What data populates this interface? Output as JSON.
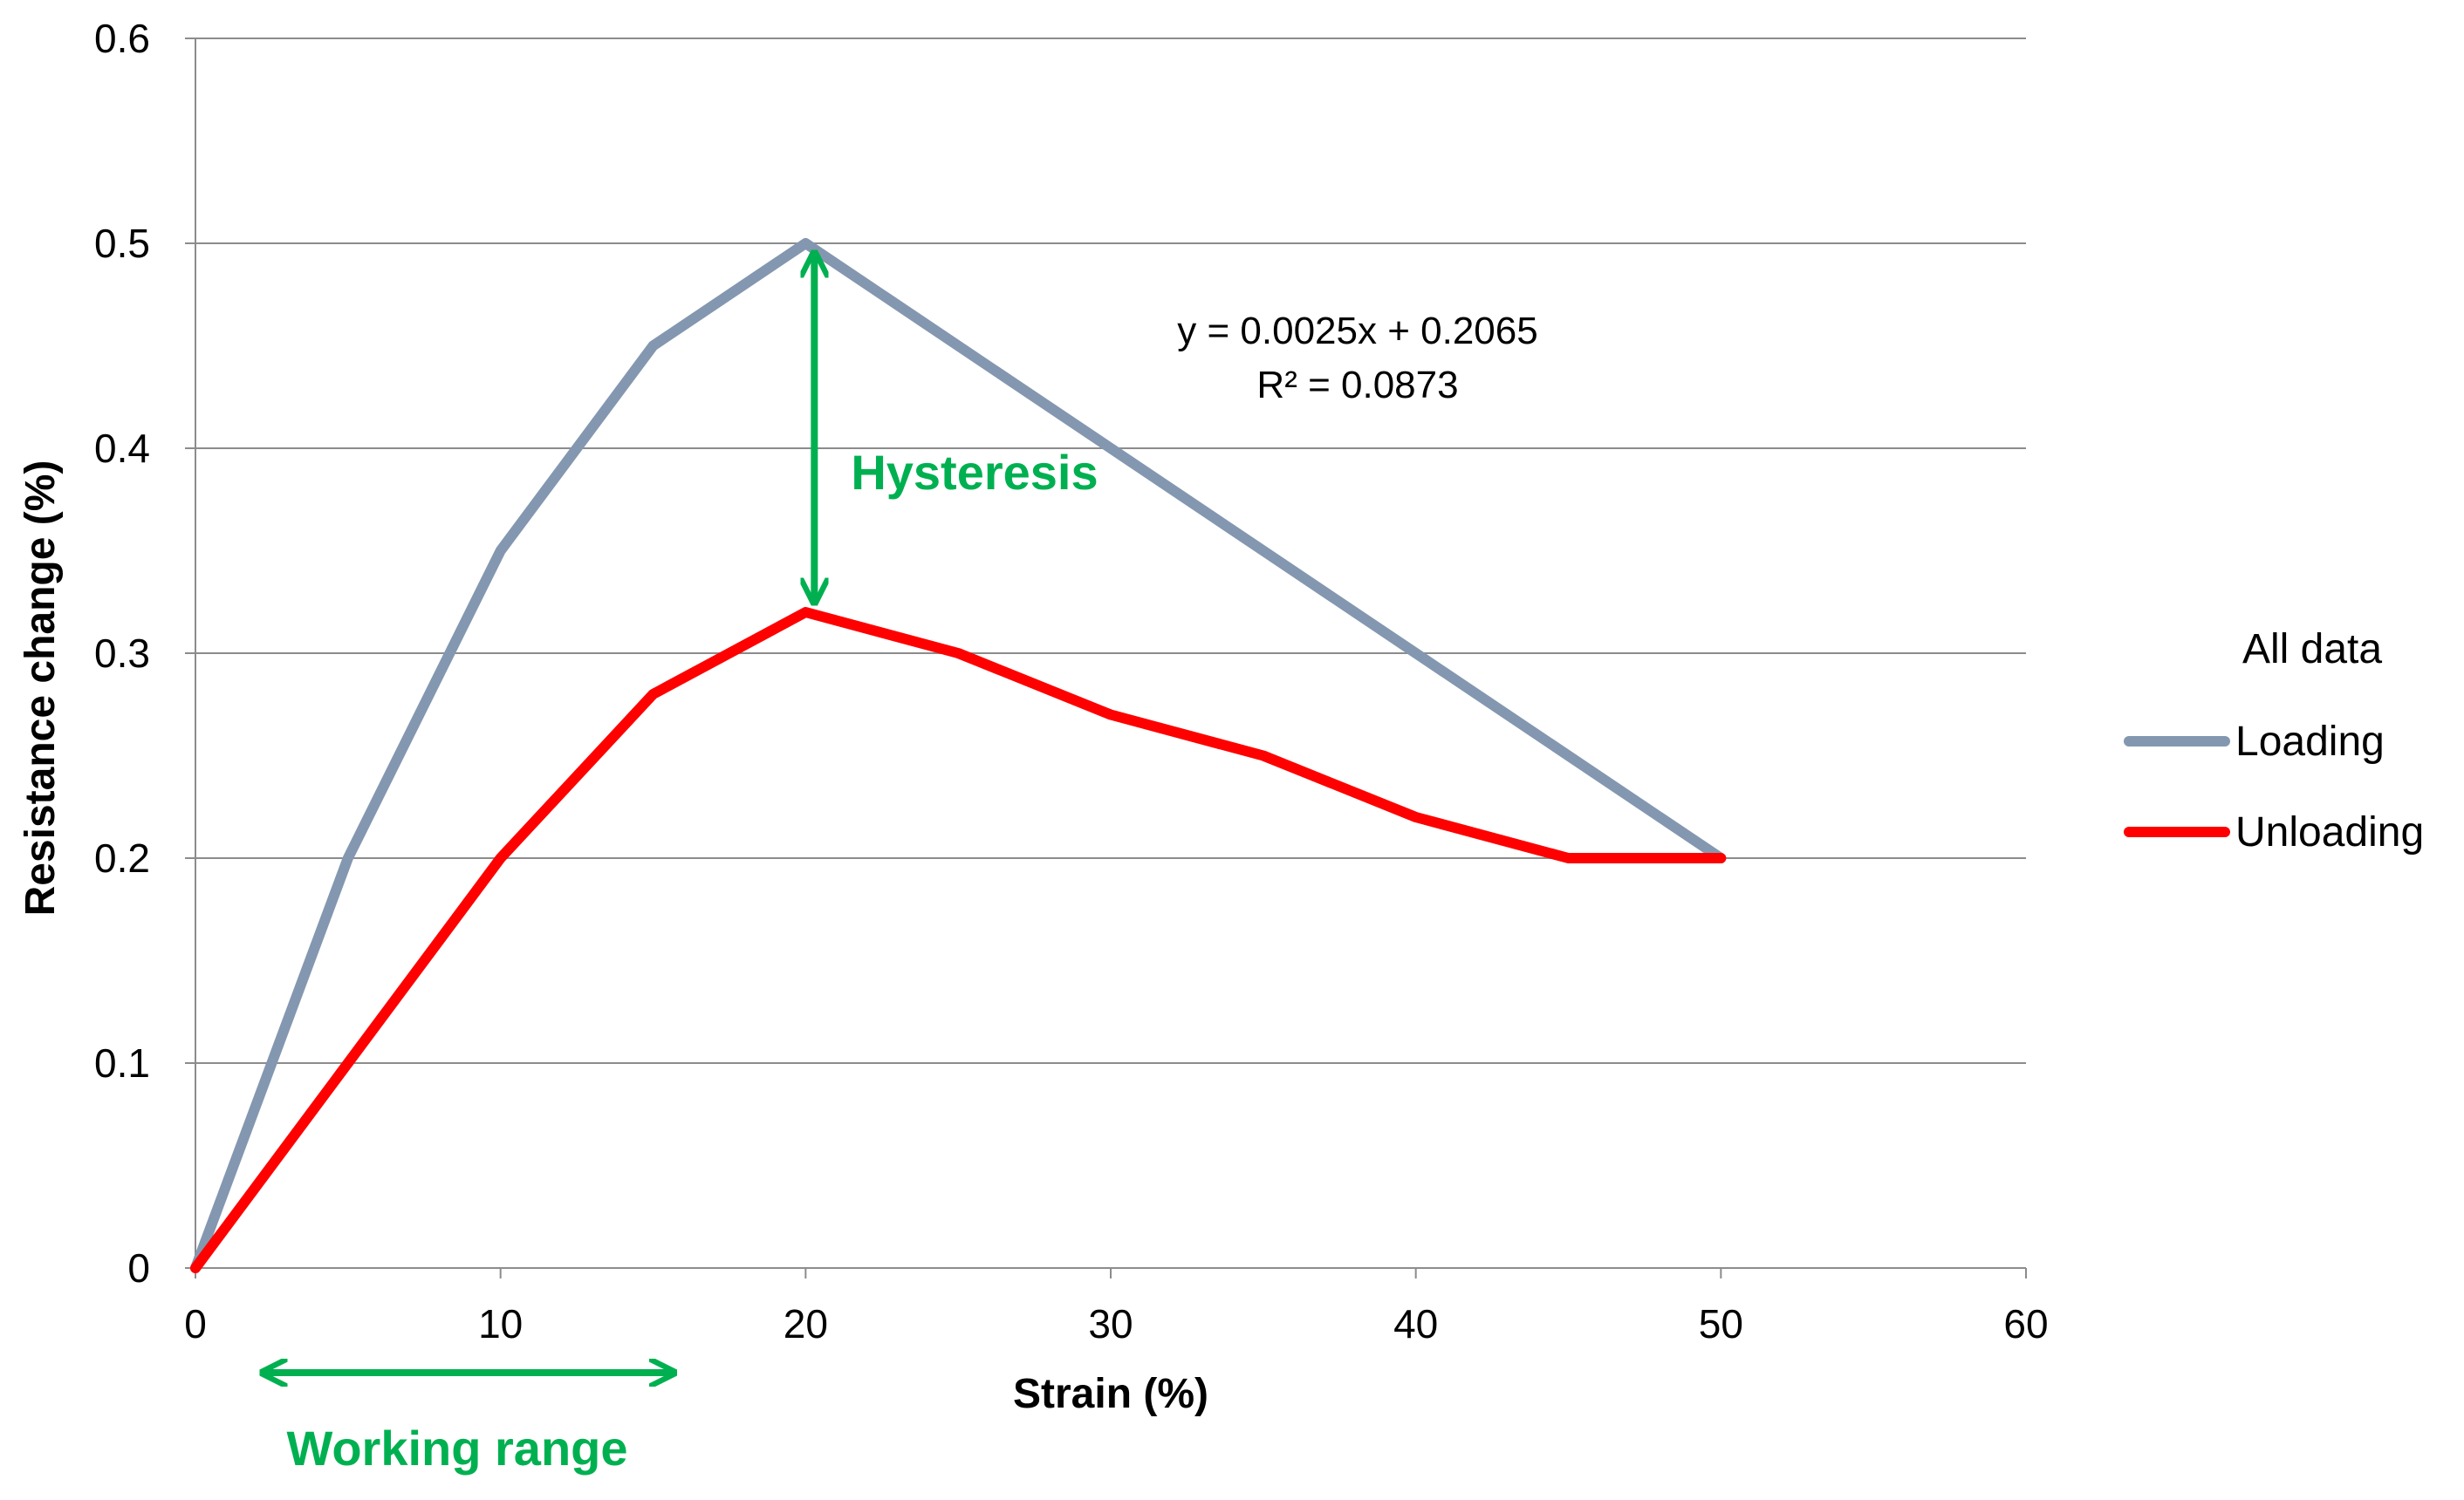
{
  "chart_data": {
    "type": "line",
    "x": [
      0,
      5,
      10,
      15,
      20,
      25,
      30,
      35,
      40,
      45,
      50
    ],
    "series": [
      {
        "name": "Loading",
        "color": "#8497b0",
        "x": [
          0,
          5,
          10,
          15,
          20,
          30,
          40,
          50
        ],
        "values": [
          0,
          0.2,
          0.35,
          0.45,
          0.5,
          0.4,
          0.3,
          0.2
        ]
      },
      {
        "name": "Unloading",
        "color": "#ff0000",
        "x": [
          0,
          5,
          10,
          15,
          20,
          25,
          30,
          35,
          40,
          45,
          50
        ],
        "values": [
          0,
          0.1,
          0.2,
          0.28,
          0.32,
          0.3,
          0.27,
          0.25,
          0.22,
          0.2,
          0.2
        ]
      }
    ],
    "xlabel": "Strain (%)",
    "ylabel": "Resistance change (%)",
    "xlim": [
      0,
      60
    ],
    "ylim": [
      0,
      0.6
    ],
    "xticks": [
      "0",
      "10",
      "20",
      "30",
      "40",
      "50",
      "60"
    ],
    "yticks": [
      "0",
      "0.1",
      "0.2",
      "0.3",
      "0.4",
      "0.5",
      "0.6"
    ],
    "grid": true,
    "legend": {
      "title": "All data",
      "position": "right"
    },
    "equation": {
      "line1": "y = 0.0025x + 0.2065",
      "line2": "R² = 0.0873"
    },
    "annotations": {
      "hysteresis": {
        "label": "Hysteresis",
        "x": 20,
        "y_from": 0.5,
        "y_to": 0.32,
        "color": "#00b050"
      },
      "working_range": {
        "label": "Working range",
        "x_from": 2,
        "x_to": 16,
        "color": "#00b050"
      }
    }
  }
}
